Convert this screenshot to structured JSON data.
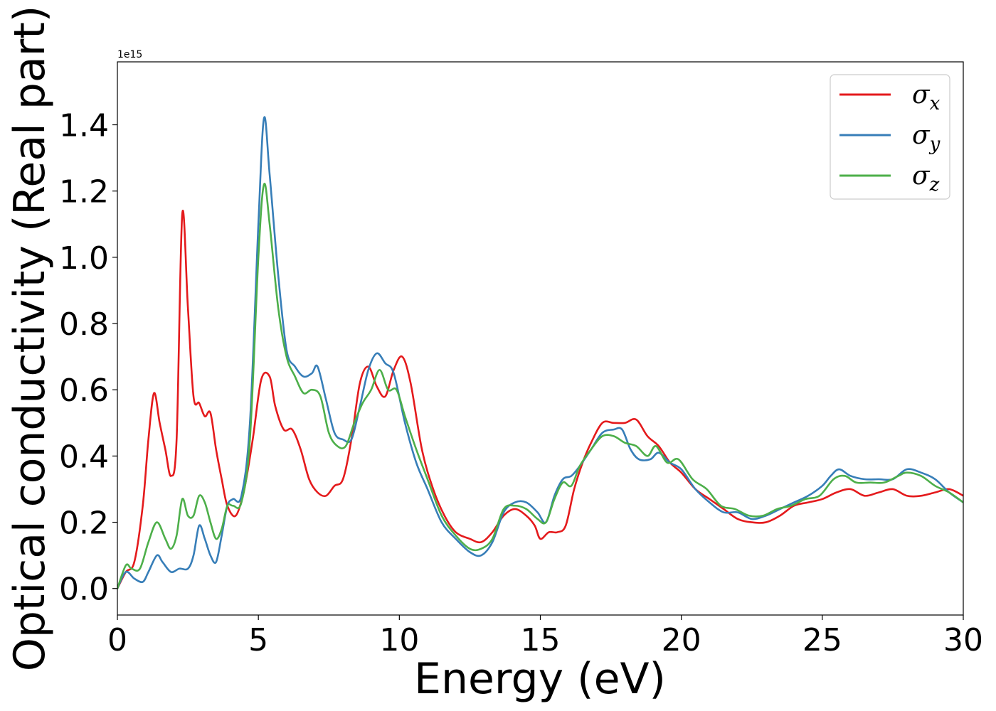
{
  "chart_data": {
    "type": "line",
    "xlabel": "Energy (eV)",
    "ylabel": "Optical conductivity (Real part)",
    "y_offset_label": "1e15",
    "xlim": [
      0,
      30
    ],
    "ylim": [
      -0.08,
      1.59
    ],
    "x_ticks": [
      0,
      5,
      10,
      15,
      20,
      25,
      30
    ],
    "y_ticks": [
      0.0,
      0.2,
      0.4,
      0.6,
      0.8,
      1.0,
      1.2,
      1.4
    ],
    "x_tick_labels": [
      "0",
      "5",
      "10",
      "15",
      "20",
      "25",
      "30"
    ],
    "y_tick_labels": [
      "0.0",
      "0.2",
      "0.4",
      "0.6",
      "0.8",
      "1.0",
      "1.2",
      "1.4"
    ],
    "grid": false,
    "legend_position": "top-right",
    "series": [
      {
        "name": "σx",
        "name_base": "σ",
        "name_sub": "x",
        "color": "#e41a1c",
        "points": [
          [
            0,
            0.0
          ],
          [
            0.3,
            0.05
          ],
          [
            0.6,
            0.08
          ],
          [
            0.9,
            0.25
          ],
          [
            1.1,
            0.45
          ],
          [
            1.3,
            0.59
          ],
          [
            1.5,
            0.5
          ],
          [
            1.7,
            0.42
          ],
          [
            1.9,
            0.34
          ],
          [
            2.1,
            0.45
          ],
          [
            2.3,
            1.13
          ],
          [
            2.5,
            0.85
          ],
          [
            2.7,
            0.58
          ],
          [
            2.9,
            0.56
          ],
          [
            3.1,
            0.52
          ],
          [
            3.3,
            0.53
          ],
          [
            3.5,
            0.42
          ],
          [
            3.7,
            0.33
          ],
          [
            3.9,
            0.25
          ],
          [
            4.2,
            0.22
          ],
          [
            4.5,
            0.3
          ],
          [
            4.8,
            0.45
          ],
          [
            5.1,
            0.63
          ],
          [
            5.4,
            0.64
          ],
          [
            5.6,
            0.55
          ],
          [
            5.9,
            0.48
          ],
          [
            6.2,
            0.48
          ],
          [
            6.5,
            0.42
          ],
          [
            6.8,
            0.33
          ],
          [
            7.1,
            0.29
          ],
          [
            7.4,
            0.28
          ],
          [
            7.7,
            0.31
          ],
          [
            8.0,
            0.33
          ],
          [
            8.3,
            0.45
          ],
          [
            8.6,
            0.62
          ],
          [
            8.9,
            0.67
          ],
          [
            9.2,
            0.61
          ],
          [
            9.5,
            0.58
          ],
          [
            9.8,
            0.66
          ],
          [
            10.1,
            0.7
          ],
          [
            10.4,
            0.62
          ],
          [
            10.8,
            0.42
          ],
          [
            11.2,
            0.3
          ],
          [
            11.6,
            0.22
          ],
          [
            12.0,
            0.17
          ],
          [
            12.5,
            0.15
          ],
          [
            12.9,
            0.14
          ],
          [
            13.3,
            0.17
          ],
          [
            13.7,
            0.22
          ],
          [
            14.1,
            0.24
          ],
          [
            14.5,
            0.22
          ],
          [
            14.8,
            0.19
          ],
          [
            15.0,
            0.15
          ],
          [
            15.3,
            0.17
          ],
          [
            15.6,
            0.17
          ],
          [
            15.9,
            0.19
          ],
          [
            16.2,
            0.3
          ],
          [
            16.5,
            0.38
          ],
          [
            16.8,
            0.44
          ],
          [
            17.2,
            0.5
          ],
          [
            17.6,
            0.5
          ],
          [
            18.0,
            0.5
          ],
          [
            18.4,
            0.51
          ],
          [
            18.8,
            0.46
          ],
          [
            19.2,
            0.43
          ],
          [
            19.6,
            0.38
          ],
          [
            20.0,
            0.35
          ],
          [
            20.5,
            0.3
          ],
          [
            21.0,
            0.27
          ],
          [
            21.5,
            0.24
          ],
          [
            22.0,
            0.21
          ],
          [
            22.5,
            0.2
          ],
          [
            23.0,
            0.2
          ],
          [
            23.5,
            0.22
          ],
          [
            24.0,
            0.25
          ],
          [
            24.5,
            0.26
          ],
          [
            25.0,
            0.27
          ],
          [
            25.5,
            0.29
          ],
          [
            26.0,
            0.3
          ],
          [
            26.5,
            0.28
          ],
          [
            27.0,
            0.29
          ],
          [
            27.5,
            0.3
          ],
          [
            28.0,
            0.28
          ],
          [
            28.5,
            0.28
          ],
          [
            29.0,
            0.29
          ],
          [
            29.5,
            0.3
          ],
          [
            30.0,
            0.28
          ]
        ]
      },
      {
        "name": "σy",
        "name_base": "σ",
        "name_sub": "y",
        "color": "#377eb8",
        "points": [
          [
            0,
            0.0
          ],
          [
            0.3,
            0.05
          ],
          [
            0.6,
            0.03
          ],
          [
            0.9,
            0.02
          ],
          [
            1.1,
            0.05
          ],
          [
            1.4,
            0.1
          ],
          [
            1.6,
            0.08
          ],
          [
            1.9,
            0.05
          ],
          [
            2.2,
            0.06
          ],
          [
            2.5,
            0.06
          ],
          [
            2.7,
            0.1
          ],
          [
            2.9,
            0.19
          ],
          [
            3.1,
            0.15
          ],
          [
            3.3,
            0.1
          ],
          [
            3.5,
            0.08
          ],
          [
            3.7,
            0.16
          ],
          [
            3.9,
            0.25
          ],
          [
            4.1,
            0.27
          ],
          [
            4.4,
            0.28
          ],
          [
            4.7,
            0.5
          ],
          [
            5.0,
            1.1
          ],
          [
            5.2,
            1.42
          ],
          [
            5.4,
            1.25
          ],
          [
            5.7,
            0.95
          ],
          [
            6.0,
            0.72
          ],
          [
            6.3,
            0.67
          ],
          [
            6.6,
            0.64
          ],
          [
            6.9,
            0.65
          ],
          [
            7.1,
            0.67
          ],
          [
            7.4,
            0.57
          ],
          [
            7.7,
            0.47
          ],
          [
            8.0,
            0.45
          ],
          [
            8.3,
            0.45
          ],
          [
            8.6,
            0.55
          ],
          [
            8.9,
            0.66
          ],
          [
            9.2,
            0.71
          ],
          [
            9.5,
            0.68
          ],
          [
            9.8,
            0.65
          ],
          [
            10.2,
            0.5
          ],
          [
            10.6,
            0.38
          ],
          [
            11.0,
            0.3
          ],
          [
            11.5,
            0.2
          ],
          [
            12.0,
            0.15
          ],
          [
            12.5,
            0.11
          ],
          [
            12.9,
            0.1
          ],
          [
            13.3,
            0.14
          ],
          [
            13.7,
            0.23
          ],
          [
            14.1,
            0.26
          ],
          [
            14.5,
            0.26
          ],
          [
            14.9,
            0.23
          ],
          [
            15.2,
            0.2
          ],
          [
            15.5,
            0.28
          ],
          [
            15.8,
            0.33
          ],
          [
            16.1,
            0.34
          ],
          [
            16.4,
            0.37
          ],
          [
            16.8,
            0.42
          ],
          [
            17.2,
            0.47
          ],
          [
            17.6,
            0.48
          ],
          [
            17.9,
            0.48
          ],
          [
            18.2,
            0.42
          ],
          [
            18.5,
            0.39
          ],
          [
            18.9,
            0.39
          ],
          [
            19.2,
            0.41
          ],
          [
            19.6,
            0.38
          ],
          [
            20.0,
            0.36
          ],
          [
            20.5,
            0.3
          ],
          [
            21.0,
            0.26
          ],
          [
            21.5,
            0.23
          ],
          [
            22.0,
            0.23
          ],
          [
            22.5,
            0.21
          ],
          [
            23.0,
            0.22
          ],
          [
            23.5,
            0.24
          ],
          [
            24.0,
            0.26
          ],
          [
            24.5,
            0.28
          ],
          [
            25.0,
            0.31
          ],
          [
            25.3,
            0.34
          ],
          [
            25.6,
            0.36
          ],
          [
            26.0,
            0.34
          ],
          [
            26.5,
            0.33
          ],
          [
            27.0,
            0.33
          ],
          [
            27.5,
            0.33
          ],
          [
            28.0,
            0.36
          ],
          [
            28.5,
            0.35
          ],
          [
            29.0,
            0.33
          ],
          [
            29.5,
            0.29
          ],
          [
            30.0,
            0.26
          ]
        ]
      },
      {
        "name": "σz",
        "name_base": "σ",
        "name_sub": "z",
        "color": "#4daf4a",
        "points": [
          [
            0,
            0.0
          ],
          [
            0.3,
            0.07
          ],
          [
            0.5,
            0.06
          ],
          [
            0.8,
            0.06
          ],
          [
            1.1,
            0.14
          ],
          [
            1.4,
            0.2
          ],
          [
            1.7,
            0.15
          ],
          [
            1.9,
            0.12
          ],
          [
            2.1,
            0.16
          ],
          [
            2.3,
            0.27
          ],
          [
            2.5,
            0.22
          ],
          [
            2.7,
            0.22
          ],
          [
            2.9,
            0.28
          ],
          [
            3.1,
            0.26
          ],
          [
            3.3,
            0.2
          ],
          [
            3.5,
            0.15
          ],
          [
            3.7,
            0.18
          ],
          [
            3.9,
            0.25
          ],
          [
            4.1,
            0.25
          ],
          [
            4.4,
            0.26
          ],
          [
            4.7,
            0.45
          ],
          [
            5.0,
            1.0
          ],
          [
            5.2,
            1.22
          ],
          [
            5.4,
            1.1
          ],
          [
            5.7,
            0.85
          ],
          [
            6.0,
            0.7
          ],
          [
            6.3,
            0.64
          ],
          [
            6.6,
            0.59
          ],
          [
            6.9,
            0.6
          ],
          [
            7.2,
            0.58
          ],
          [
            7.5,
            0.47
          ],
          [
            7.8,
            0.43
          ],
          [
            8.1,
            0.43
          ],
          [
            8.4,
            0.5
          ],
          [
            8.7,
            0.56
          ],
          [
            9.0,
            0.6
          ],
          [
            9.3,
            0.66
          ],
          [
            9.6,
            0.6
          ],
          [
            9.9,
            0.6
          ],
          [
            10.2,
            0.52
          ],
          [
            10.6,
            0.42
          ],
          [
            11.0,
            0.33
          ],
          [
            11.5,
            0.22
          ],
          [
            12.0,
            0.16
          ],
          [
            12.5,
            0.12
          ],
          [
            12.9,
            0.12
          ],
          [
            13.3,
            0.15
          ],
          [
            13.7,
            0.24
          ],
          [
            14.1,
            0.25
          ],
          [
            14.5,
            0.24
          ],
          [
            14.9,
            0.21
          ],
          [
            15.2,
            0.2
          ],
          [
            15.5,
            0.27
          ],
          [
            15.8,
            0.32
          ],
          [
            16.1,
            0.31
          ],
          [
            16.4,
            0.37
          ],
          [
            16.8,
            0.42
          ],
          [
            17.2,
            0.46
          ],
          [
            17.6,
            0.46
          ],
          [
            18.0,
            0.44
          ],
          [
            18.4,
            0.43
          ],
          [
            18.8,
            0.4
          ],
          [
            19.1,
            0.43
          ],
          [
            19.5,
            0.38
          ],
          [
            19.9,
            0.39
          ],
          [
            20.4,
            0.33
          ],
          [
            20.9,
            0.3
          ],
          [
            21.4,
            0.25
          ],
          [
            21.9,
            0.24
          ],
          [
            22.4,
            0.22
          ],
          [
            22.9,
            0.22
          ],
          [
            23.4,
            0.24
          ],
          [
            23.9,
            0.25
          ],
          [
            24.4,
            0.27
          ],
          [
            24.9,
            0.28
          ],
          [
            25.4,
            0.33
          ],
          [
            25.8,
            0.34
          ],
          [
            26.2,
            0.32
          ],
          [
            26.7,
            0.32
          ],
          [
            27.2,
            0.32
          ],
          [
            27.7,
            0.34
          ],
          [
            28.0,
            0.35
          ],
          [
            28.5,
            0.34
          ],
          [
            29.0,
            0.31
          ],
          [
            29.5,
            0.29
          ],
          [
            30.0,
            0.26
          ]
        ]
      }
    ]
  }
}
